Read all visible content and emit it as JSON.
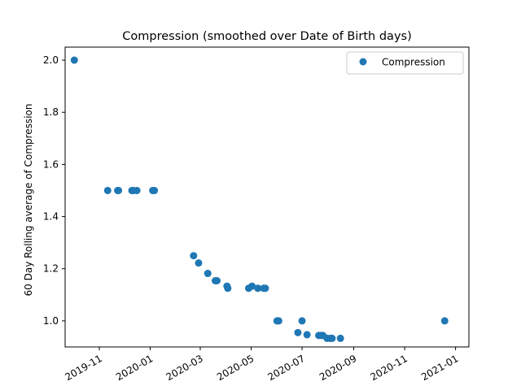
{
  "chart_data": {
    "type": "scatter",
    "title": "Compression  (smoothed over Date of Birth days)",
    "xlabel": "",
    "ylabel": "60 Day Rolling average of Compression",
    "xlim": [
      "2019-09-21",
      "2021-01-17"
    ],
    "ylim": [
      0.9,
      2.05
    ],
    "x_ticks": [
      "2019-11",
      "2020-01",
      "2020-03",
      "2020-05",
      "2020-07",
      "2020-09",
      "2020-11",
      "2021-01"
    ],
    "y_ticks": [
      "1.0",
      "1.2",
      "1.4",
      "1.6",
      "1.8",
      "2.0"
    ],
    "legend": {
      "position": "top-right",
      "entries": [
        "Compression"
      ]
    },
    "grid": false,
    "series": [
      {
        "name": "Compression",
        "color": "#1f77b4",
        "points": [
          [
            "2019-10-02",
            2.0
          ],
          [
            "2019-11-11",
            1.5
          ],
          [
            "2019-11-23",
            1.5
          ],
          [
            "2019-11-24",
            1.5
          ],
          [
            "2019-12-10",
            1.5
          ],
          [
            "2019-12-12",
            1.5
          ],
          [
            "2019-12-16",
            1.5
          ],
          [
            "2020-01-04",
            1.5
          ],
          [
            "2020-01-06",
            1.5
          ],
          [
            "2020-02-22",
            1.25
          ],
          [
            "2020-02-28",
            1.222
          ],
          [
            "2020-03-10",
            1.182
          ],
          [
            "2020-03-19",
            1.154
          ],
          [
            "2020-03-21",
            1.154
          ],
          [
            "2020-04-02",
            1.133
          ],
          [
            "2020-04-03",
            1.125
          ],
          [
            "2020-04-28",
            1.125
          ],
          [
            "2020-05-02",
            1.133
          ],
          [
            "2020-05-09",
            1.125
          ],
          [
            "2020-05-16",
            1.125
          ],
          [
            "2020-05-18",
            1.125
          ],
          [
            "2020-06-01",
            1.0
          ],
          [
            "2020-06-03",
            1.0
          ],
          [
            "2020-06-26",
            0.955
          ],
          [
            "2020-07-01",
            1.0
          ],
          [
            "2020-07-07",
            0.947
          ],
          [
            "2020-07-21",
            0.944
          ],
          [
            "2020-07-24",
            0.944
          ],
          [
            "2020-07-26",
            0.944
          ],
          [
            "2020-07-31",
            0.933
          ],
          [
            "2020-08-04",
            0.933
          ],
          [
            "2020-08-06",
            0.933
          ],
          [
            "2020-08-16",
            0.933
          ],
          [
            "2020-12-19",
            1.0
          ]
        ]
      }
    ]
  }
}
